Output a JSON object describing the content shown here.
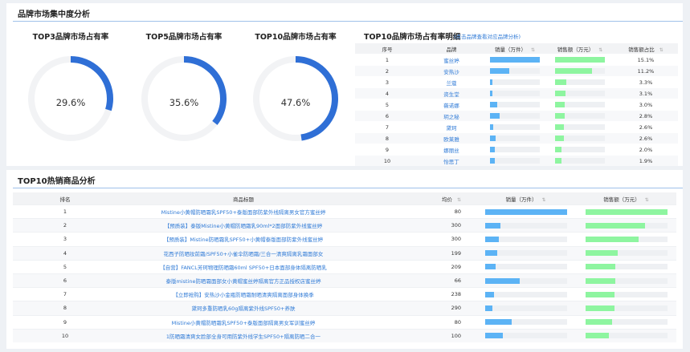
{
  "colors": {
    "accent": "#2f6fd6",
    "ring_bg": "#f2f3f5",
    "bar_blue": "#5cb3f5",
    "bar_green": "#8ef5a0",
    "bar_bg": "#eef0f3"
  },
  "section1": {
    "title": "品牌市场集中度分析"
  },
  "donuts": [
    {
      "title": "TOP3品牌市场占有率",
      "label": "29.6%",
      "pct": 29.6
    },
    {
      "title": "TOP5品牌市场占有率",
      "label": "35.6%",
      "pct": 35.6
    },
    {
      "title": "TOP10品牌市场占有率",
      "label": "47.6%",
      "pct": 47.6
    }
  ],
  "top10": {
    "title": "TOP10品牌市场占有率明细",
    "note": "(点击品牌查看对应品牌分析)",
    "headers": [
      "序号",
      "品牌",
      "销量（万件）",
      "销售额（万元）",
      "销售额占比"
    ],
    "rows": [
      {
        "no": "1",
        "brand": "蜜丝婷",
        "sales": 1.0,
        "revenue": 1.0,
        "share": "15.1%"
      },
      {
        "no": "2",
        "brand": "安热沙",
        "sales": 0.38,
        "revenue": 0.74,
        "share": "11.2%"
      },
      {
        "no": "3",
        "brand": "兰蔻",
        "sales": 0.05,
        "revenue": 0.22,
        "share": "3.3%"
      },
      {
        "no": "4",
        "brand": "资生堂",
        "sales": 0.05,
        "revenue": 0.21,
        "share": "3.1%"
      },
      {
        "no": "5",
        "brand": "薇诺娜",
        "sales": 0.15,
        "revenue": 0.2,
        "share": "3.0%"
      },
      {
        "no": "6",
        "brand": "玥之秘",
        "sales": 0.2,
        "revenue": 0.19,
        "share": "2.8%"
      },
      {
        "no": "7",
        "brand": "黛珂",
        "sales": 0.06,
        "revenue": 0.17,
        "share": "2.6%"
      },
      {
        "no": "8",
        "brand": "欧莱雅",
        "sales": 0.12,
        "revenue": 0.17,
        "share": "2.6%"
      },
      {
        "no": "9",
        "brand": "娜丽丝",
        "sales": 0.09,
        "revenue": 0.13,
        "share": "2.0%"
      },
      {
        "no": "10",
        "brand": "怡思丁",
        "sales": 0.09,
        "revenue": 0.13,
        "share": "1.9%"
      }
    ]
  },
  "section2": {
    "title": "TOP10热销商品分析"
  },
  "products": {
    "headers": [
      "排名",
      "商品标题",
      "均价",
      "销量（万件）",
      "销售额（万元）"
    ],
    "rows": [
      {
        "rank": "1",
        "title": "Mistine小黄帽防晒霜乳SPF50+泰版面部防紫外线隔离男女官方蜜丝婷",
        "price": "80",
        "sales": 1.0,
        "revenue": 1.0
      },
      {
        "rank": "2",
        "title": "【预质装】泰版Mistine小黄帽防晒霜乳90ml*2面部防紫外线蜜丝婷",
        "price": "300",
        "sales": 0.19,
        "revenue": 0.73
      },
      {
        "rank": "3",
        "title": "【预质装】Mistine防晒霜乳SPF50+小黄帽泰版面部防紫外线蜜丝婷",
        "price": "300",
        "sales": 0.17,
        "revenue": 0.65
      },
      {
        "rank": "4",
        "title": "花西子防晒妆前霜/SPF50+小雀伞防晒霜/三合一清爽隔离乳霜面部女",
        "price": "199",
        "sales": 0.15,
        "revenue": 0.4
      },
      {
        "rank": "5",
        "title": "【自营】FANCL芳珂物理防晒霜60ml SPF50+日本面部身体隔离防晒乳",
        "price": "209",
        "sales": 0.13,
        "revenue": 0.37
      },
      {
        "rank": "6",
        "title": "泰版mistine防晒霜面部女小黄帽蜜丝婷隔离官方正品授权店蜜丝婷",
        "price": "66",
        "sales": 0.43,
        "revenue": 0.37
      },
      {
        "rank": "7",
        "title": "【立即抢购】安热沙小金瓶防晒霜耐晒清爽隔离面部身体换季",
        "price": "238",
        "sales": 0.11,
        "revenue": 0.36
      },
      {
        "rank": "8",
        "title": "黛珂多重防晒乳60g隔离紫外线SPF50+养肤",
        "price": "290",
        "sales": 0.09,
        "revenue": 0.36
      },
      {
        "rank": "9",
        "title": "Mistine小黄帽防晒霜乳SPF50+泰版面部隔离男女军训蜜丝婷",
        "price": "80",
        "sales": 0.33,
        "revenue": 0.33
      },
      {
        "rank": "10",
        "title": "1防晒霜清爽女脸部全身可用防紫外线学生SPF50+隔离防晒二合一",
        "price": "100",
        "sales": 0.22,
        "revenue": 0.29
      }
    ]
  }
}
